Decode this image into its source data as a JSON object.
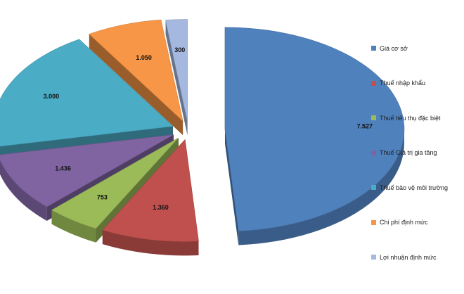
{
  "chart_data": {
    "type": "pie",
    "title": "",
    "categories": [
      "Giá cơ sở",
      "Thuế nhập khẩu",
      "Thuế tiêu thụ đặc biệt",
      "Thuế Giá trị gia tăng",
      "Thuế bảo vệ môi trường",
      "Chi phí định mức",
      "Lợi nhuận định mức"
    ],
    "values": [
      7527,
      1360,
      753,
      1436,
      3000,
      1050,
      300
    ],
    "data_labels": [
      "7.527",
      "1.360",
      "753",
      "1.436",
      "3.000",
      "1.050",
      "300"
    ],
    "colors": [
      "#4f81bd",
      "#c0504d",
      "#9bbb59",
      "#8064a2",
      "#4bacc6",
      "#f79646",
      "#a5b9e0"
    ],
    "style": "3d-exploded",
    "legend_position": "right"
  }
}
